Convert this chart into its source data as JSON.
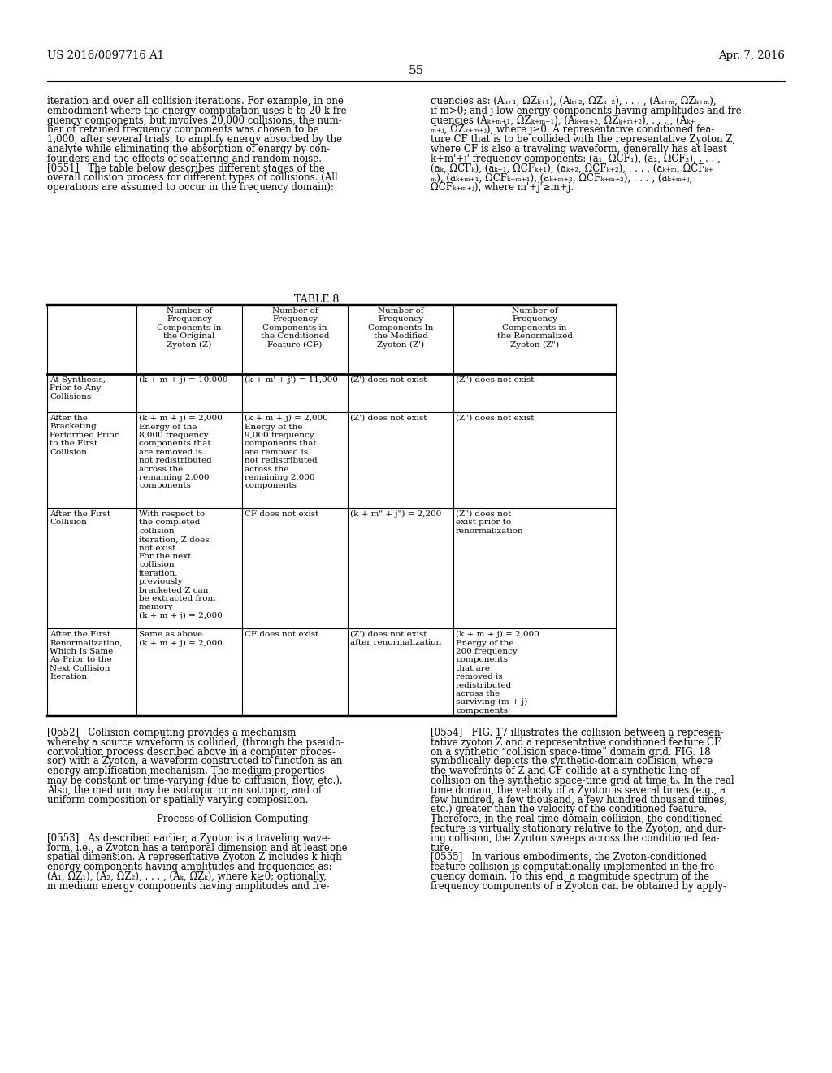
{
  "page_number": "55",
  "patent_number": "US 2016/0097716 A1",
  "patent_date": "Apr. 7, 2016",
  "background_color": "#ffffff",
  "left_col_text_lines": [
    "iteration and over all collision iterations. For example, in one",
    "embodiment where the energy computation uses 6 to 20 k-fre-",
    "quency components, but involves 20,000 collisions, the num-",
    "ber of retained frequency components was chosen to be",
    "1,000, after several trials, to amplify energy absorbed by the",
    "analyte while eliminating the absorption of energy by con-",
    "founders and the effects of scattering and random noise.",
    "[0551]   The table below describes different stages of the",
    "overall collision process for different types of collisions. (All",
    "operations are assumed to occur in the frequency domain):"
  ],
  "right_col_text_lines": [
    "quencies as: (Aₖ₊₁, ΩZₖ₊₁), (Aₖ₊₂, ΩZₖ₊₂), . . . , (Aₖ₊ₘ, ΩZₖ₊ₘ),",
    "if m>0; and j low energy components having amplitudes and fre-",
    "quencies (Aₖ₊ₘ₊₁, ΩZₖ₊ₘ₊₁), (Aₖ₊ₘ₊₂, ΩZₖ₊ₘ₊₂), . . . , (Aₖ₊",
    "ₘ₊ⱼ, ΩZₖ₊ₘ₊ⱼ), where j≥0. A representative conditioned fea-",
    "ture CF that is to be collided with the representative Zyoton Z,",
    "where CF is also a traveling waveform, generally has at least",
    "k+m'+j' frequency components: (a₁, ΩCF₁), (a₂, ΩCF₂), . . . ,",
    "(aₖ, ΩCFₖ), (aₖ₊₁, ΩCFₖ₊₁), (aₖ₊₂, ΩCFₖ₊₂), . . . , (aₖ₊ₘ, ΩCFₖ₊",
    "ₘ), (aₖ₊ₘ₊₁, ΩCFₖ₊ₘ₊₁), (aₖ₊ₘ₊₂, ΩCFₖ₊ₘ₊₂), . . . , (aₖ₊ₘ₊ⱼ,",
    "ΩCFₖ₊ₘ₊ⱼ), where m'+j'≥m+j."
  ],
  "table_title": "TABLE 8",
  "table_col_headers": [
    "",
    "Number of\nFrequency\nComponents in\nthe Original\nZyoton (Z)",
    "Number of\nFrequency\nComponents in\nthe Conditioned\nFeature (CF)",
    "Number of\nFrequency\nComponents In\nthe Modified\nZyoton (Z')",
    "Number of\nFrequency\nComponents in\nthe Renormalized\nZyoton (Z\")"
  ],
  "table_rows": [
    [
      "At Synthesis,\nPrior to Any\nCollisions",
      "(k + m + j) = 10,000",
      "(k + m' + j') = 11,000",
      "(Z') does not exist",
      "(Z\") does not exist"
    ],
    [
      "After the\nBracketing\nPerformed Prior\nto the First\nCollision",
      "(k + m + j) = 2,000\nEnergy of the\n8,000 frequency\ncomponents that\nare removed is\nnot redistributed\nacross the\nremaining 2,000\ncomponents",
      "(k + m + j) = 2,000\nEnergy of the\n9,000 frequency\ncomponents that\nare removed is\nnot redistributed\nacross the\nremaining 2,000\ncomponents",
      "(Z') does not exist",
      "(Z\") does not exist"
    ],
    [
      "After the First\nCollision",
      "With respect to\nthe completed\ncollision\niteration, Z does\nnot exist.\nFor the next\ncollision\niteration,\npreviously\nbracketed Z can\nbe extracted from\nmemory\n(k + m + j) = 2,000",
      "CF does not exist",
      "(k + m\" + j\") = 2,200",
      "(Z\") does not\nexist prior to\nrenormalization"
    ],
    [
      "After the First\nRenormalization,\nWhich Is Same\nAs Prior to the\nNext Collision\nIteration",
      "Same as above.\n(k + m + j) = 2,000",
      "CF does not exist",
      "(Z') does not exist\nafter renormalization",
      "(k + m + j) = 2,000\nEnergy of the\n200 frequency\ncomponents\nthat are\nremoved is\nredistributed\nacross the\nsurviving (m + j)\ncomponents"
    ]
  ],
  "bottom_left_lines": [
    "[0552]   Collision computing provides a mechanism",
    "whereby a source waveform is collided, (through the pseudo-",
    "convolution process described above in a computer proces-",
    "sor) with a Zyoton, a waveform constructed to function as an",
    "energy amplification mechanism. The medium properties",
    "may be constant or time-varying (due to diffusion, flow, etc.).",
    "Also, the medium may be isotropic or anisotropic, and of",
    "uniform composition or spatially varying composition.",
    "",
    "Process of Collision Computing",
    "",
    "[0553]   As described earlier, a Zyoton is a traveling wave-",
    "form, i.e., a Zyoton has a temporal dimension and at least one",
    "spatial dimension. A representative Zyoton Z includes k high",
    "energy components having amplitudes and frequencies as:",
    "(A₁, ΩZ₁), (A₂, ΩZ₂), . . . , (Aₖ, ΩZₖ), where k≥0; optionally,",
    "m medium energy components having amplitudes and fre-"
  ],
  "bottom_right_lines": [
    "[0554]   FIG. 17 illustrates the collision between a represen-",
    "tative zyoton Z and a representative conditioned feature CF",
    "on a synthetic “collision space-time” domain grid. FIG. 18",
    "symbolically depicts the synthetic-domain collision, where",
    "the wavefronts of Z and CF collide at a synthetic line of",
    "collision on the synthetic space-time grid at time t₀. In the real",
    "time domain, the velocity of a Zyoton is several times (e.g., a",
    "few hundred, a few thousand, a few hundred thousand times,",
    "etc.) greater than the velocity of the conditioned feature.",
    "Therefore, in the real time-domain collision, the conditioned",
    "feature is virtually stationary relative to the Zyoton, and dur-",
    "ing collision, the Zyoton sweeps across the conditioned fea-",
    "ture.",
    "[0555]   In various embodiments, the Zyoton-conditioned",
    "feature collision is computationally implemented in the fre-",
    "quency domain. To this end, a magnitude spectrum of the",
    "frequency components of a Zyoton can be obtained by apply-"
  ]
}
